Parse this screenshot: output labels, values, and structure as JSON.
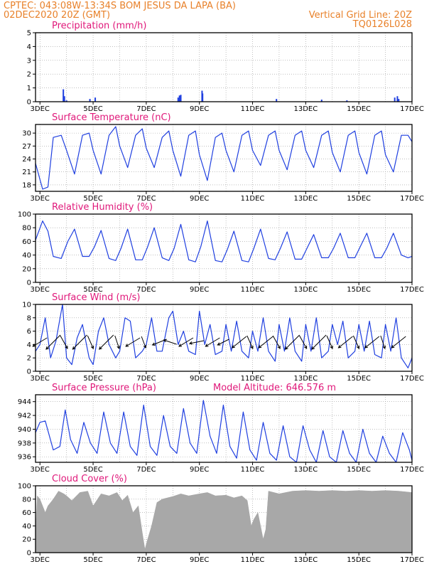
{
  "header": {
    "line1_left": "CPTEC:   043:08W-13:34S   BOM JESUS DA LAPA (BA)",
    "line2_left": "02DEC2020 20Z (GMT)",
    "line2_right": "Vertical Grid Line: 20Z",
    "line3_right": "TQ0126L028"
  },
  "colors": {
    "header_text": "#e8812a",
    "panel_title": "#e0187a",
    "series_line": "#1f3fe0",
    "cloud_fill": "#a8a8a8",
    "wind_arrow": "#000000",
    "grid": "#999999"
  },
  "x_axis": {
    "start_day": 2.833,
    "end_day": 17,
    "tick_days": [
      3,
      5,
      7,
      9,
      11,
      13,
      15,
      17
    ],
    "tick_labels": [
      "3DEC",
      "5DEC",
      "7DEC",
      "9DEC",
      "11DEC",
      "13DEC",
      "15DEC",
      "17DEC"
    ],
    "grid_days": [
      3,
      4,
      5,
      6,
      7,
      8,
      9,
      10,
      11,
      12,
      13,
      14,
      15,
      16,
      17
    ]
  },
  "chart_data": [
    {
      "type": "bar",
      "title": "Precipitation (mm/h)",
      "ylim": [
        0,
        5
      ],
      "yticks": [
        0,
        1,
        2,
        3,
        4,
        5
      ],
      "x": [
        3.88,
        3.92,
        4.0,
        4.88,
        5.08,
        8.2,
        8.25,
        8.3,
        9.1,
        9.12,
        11.9,
        13.6,
        14.55,
        16.35,
        16.45,
        16.5
      ],
      "values": [
        0.9,
        0.4,
        0.1,
        0.2,
        0.3,
        0.3,
        0.45,
        0.5,
        0.8,
        0.6,
        0.2,
        0.15,
        0.1,
        0.3,
        0.4,
        0.2
      ]
    },
    {
      "type": "line",
      "title": "Surface Temperature (nC)",
      "ylim": [
        16.5,
        32
      ],
      "yticks": [
        18,
        21,
        24,
        27,
        30
      ],
      "x": [
        2.833,
        3.1,
        3.3,
        3.5,
        3.8,
        4.0,
        4.3,
        4.6,
        4.85,
        5.0,
        5.3,
        5.6,
        5.85,
        6.0,
        6.3,
        6.6,
        6.85,
        7.0,
        7.3,
        7.6,
        7.85,
        8.0,
        8.3,
        8.6,
        8.85,
        9.0,
        9.3,
        9.6,
        9.85,
        10.0,
        10.3,
        10.6,
        10.85,
        11.0,
        11.3,
        11.6,
        11.85,
        12.0,
        12.3,
        12.6,
        12.85,
        13.0,
        13.3,
        13.6,
        13.85,
        14.0,
        14.3,
        14.6,
        14.85,
        15.0,
        15.3,
        15.6,
        15.85,
        16.0,
        16.3,
        16.6,
        16.85,
        17.0
      ],
      "y": [
        23,
        17,
        17.5,
        29,
        29.5,
        26,
        20.5,
        29.5,
        30,
        26,
        20.5,
        29.5,
        31.5,
        27,
        22,
        29.5,
        31,
        26.5,
        22,
        29,
        30.5,
        26,
        20,
        29.5,
        30.5,
        25,
        19,
        29,
        30,
        26,
        21,
        29.5,
        30.5,
        26,
        22.5,
        29.5,
        30.5,
        26,
        21.5,
        29.5,
        30.5,
        26,
        22,
        29.5,
        30.5,
        25.5,
        21,
        29.5,
        30.5,
        25.5,
        20.5,
        29.5,
        30.5,
        25,
        21,
        29.5,
        29.5,
        28
      ]
    },
    {
      "type": "line",
      "title": "Relative Humidity (%)",
      "ylim": [
        0,
        100
      ],
      "yticks": [
        0,
        20,
        40,
        60,
        80,
        100
      ],
      "x": [
        2.833,
        3.1,
        3.3,
        3.5,
        3.8,
        4.05,
        4.3,
        4.6,
        4.85,
        5.05,
        5.3,
        5.6,
        5.85,
        6.05,
        6.3,
        6.6,
        6.85,
        7.05,
        7.3,
        7.6,
        7.85,
        8.05,
        8.3,
        8.6,
        8.85,
        9.05,
        9.3,
        9.6,
        9.85,
        10.05,
        10.3,
        10.6,
        10.85,
        11.05,
        11.3,
        11.6,
        11.85,
        12.05,
        12.3,
        12.6,
        12.85,
        13.05,
        13.3,
        13.6,
        13.85,
        14.05,
        14.3,
        14.6,
        14.85,
        15.05,
        15.3,
        15.6,
        15.85,
        16.05,
        16.3,
        16.6,
        16.85,
        17.0
      ],
      "y": [
        62,
        90,
        75,
        38,
        35,
        60,
        78,
        38,
        38,
        52,
        76,
        35,
        32,
        50,
        78,
        33,
        33,
        52,
        80,
        36,
        32,
        50,
        85,
        33,
        30,
        52,
        90,
        32,
        30,
        48,
        75,
        32,
        30,
        50,
        78,
        35,
        33,
        50,
        74,
        34,
        34,
        50,
        70,
        36,
        36,
        50,
        72,
        36,
        36,
        52,
        72,
        36,
        36,
        50,
        72,
        40,
        36,
        38
      ]
    },
    {
      "type": "line",
      "title": "Surface Wind (m/s)",
      "ylim": [
        0,
        10
      ],
      "yticks": [
        0,
        2,
        4,
        6,
        8,
        10
      ],
      "x": [
        2.833,
        3.0,
        3.2,
        3.4,
        3.6,
        3.85,
        4.0,
        4.2,
        4.4,
        4.6,
        4.85,
        5.0,
        5.2,
        5.4,
        5.6,
        5.85,
        6.0,
        6.2,
        6.4,
        6.6,
        6.85,
        7.0,
        7.2,
        7.4,
        7.6,
        7.85,
        8.0,
        8.2,
        8.4,
        8.6,
        8.85,
        9.0,
        9.2,
        9.4,
        9.6,
        9.85,
        10.0,
        10.2,
        10.4,
        10.6,
        10.85,
        11.0,
        11.2,
        11.4,
        11.6,
        11.85,
        12.0,
        12.2,
        12.4,
        12.6,
        12.85,
        13.0,
        13.2,
        13.4,
        13.6,
        13.85,
        14.0,
        14.2,
        14.4,
        14.6,
        14.85,
        15.0,
        15.2,
        15.4,
        15.6,
        15.85,
        16.0,
        16.2,
        16.4,
        16.6,
        16.85,
        17.0
      ],
      "y": [
        3,
        4,
        8,
        2,
        4.5,
        10,
        2,
        1,
        5,
        7,
        2,
        1,
        6,
        8,
        4,
        2,
        3,
        8,
        7.5,
        2,
        3,
        4,
        8,
        3,
        3,
        8,
        9,
        4,
        6,
        3,
        2.5,
        9,
        4,
        7,
        2.5,
        3,
        7,
        3,
        7.5,
        3,
        2,
        6,
        3,
        8,
        3,
        1.5,
        7,
        3,
        8,
        3,
        1.5,
        7,
        3,
        8,
        2,
        3,
        7,
        4,
        7.5,
        2,
        3,
        7,
        3,
        7.5,
        2.5,
        2,
        7,
        3,
        8,
        2,
        0.5,
        2
      ]
    },
    {
      "type": "line",
      "title": "Surface Pressure (hPa)",
      "ylim": [
        935.2,
        945
      ],
      "yticks": [
        936,
        938,
        940,
        942,
        944
      ],
      "x": [
        2.833,
        3.0,
        3.2,
        3.5,
        3.75,
        3.95,
        4.15,
        4.4,
        4.65,
        4.9,
        5.15,
        5.4,
        5.65,
        5.9,
        6.15,
        6.4,
        6.65,
        6.9,
        7.15,
        7.4,
        7.65,
        7.9,
        8.15,
        8.4,
        8.65,
        8.9,
        9.15,
        9.4,
        9.65,
        9.9,
        10.15,
        10.4,
        10.65,
        10.9,
        11.15,
        11.4,
        11.65,
        11.9,
        12.15,
        12.4,
        12.65,
        12.9,
        13.15,
        13.4,
        13.65,
        13.9,
        14.15,
        14.4,
        14.65,
        14.9,
        15.15,
        15.4,
        15.65,
        15.9,
        16.15,
        16.4,
        16.65,
        16.9,
        17.0
      ],
      "y": [
        939.5,
        941,
        941.2,
        937,
        937.5,
        942.8,
        938.5,
        936.5,
        941,
        938,
        936.5,
        942.5,
        938,
        936.5,
        942.5,
        937.5,
        936.2,
        943.5,
        937.5,
        936.2,
        942,
        937.5,
        936.5,
        943,
        938,
        936.5,
        944.2,
        939,
        936.5,
        943.5,
        937.5,
        935.8,
        942.5,
        937,
        935.5,
        941,
        936.5,
        935.5,
        940.5,
        936,
        935.2,
        940.5,
        937,
        935.2,
        939.8,
        936,
        935.2,
        939.8,
        936.5,
        935.2,
        940,
        936.5,
        935.2,
        939,
        936.5,
        935.2,
        939.5,
        937,
        935.5
      ]
    },
    {
      "type": "area",
      "title": "Cloud Cover (%)",
      "ylim": [
        0,
        100
      ],
      "yticks": [
        0,
        20,
        40,
        60,
        80,
        100
      ],
      "x": [
        2.833,
        2.9,
        3.0,
        3.2,
        3.3,
        3.5,
        3.7,
        3.9,
        4.0,
        4.2,
        4.5,
        4.8,
        5.0,
        5.3,
        5.6,
        5.9,
        6.1,
        6.3,
        6.5,
        6.7,
        6.85,
        6.95,
        7.05,
        7.2,
        7.4,
        7.6,
        7.8,
        8.0,
        8.3,
        8.6,
        9.0,
        9.3,
        9.6,
        10.0,
        10.3,
        10.6,
        10.8,
        10.95,
        11.05,
        11.2,
        11.3,
        11.4,
        11.5,
        11.6,
        11.8,
        12.0,
        12.5,
        13.0,
        13.5,
        14.0,
        14.5,
        15.0,
        15.5,
        16.0,
        16.5,
        17.0
      ],
      "y": [
        30,
        85,
        80,
        60,
        70,
        80,
        92,
        88,
        85,
        78,
        90,
        92,
        70,
        88,
        85,
        90,
        78,
        86,
        60,
        70,
        30,
        5,
        20,
        40,
        75,
        80,
        82,
        84,
        88,
        85,
        88,
        90,
        85,
        86,
        82,
        85,
        78,
        40,
        50,
        60,
        40,
        20,
        35,
        92,
        90,
        88,
        92,
        93,
        92,
        93,
        92,
        93,
        92,
        93,
        92,
        90
      ]
    }
  ],
  "panel_extra": {
    "model_altitude_label": "Model Altitude:  646.576  m"
  },
  "wind_vectors": [
    {
      "day": 3.0,
      "u": 1.0,
      "v": 0.6
    },
    {
      "day": 3.5,
      "u": 1.0,
      "v": 1.0
    },
    {
      "day": 3.9,
      "u": -0.5,
      "v": 0.9
    },
    {
      "day": 4.5,
      "u": 1.0,
      "v": 1.0
    },
    {
      "day": 4.9,
      "u": -0.4,
      "v": 0.9
    },
    {
      "day": 5.5,
      "u": 1.0,
      "v": 1.0
    },
    {
      "day": 5.9,
      "u": -0.3,
      "v": 0.9
    },
    {
      "day": 6.5,
      "u": 1.0,
      "v": 0.6
    },
    {
      "day": 6.9,
      "u": -0.3,
      "v": 0.8
    },
    {
      "day": 7.5,
      "u": 1.0,
      "v": 0.4
    },
    {
      "day": 7.9,
      "u": 0.9,
      "v": -0.3
    },
    {
      "day": 8.5,
      "u": 1.0,
      "v": 0.6
    },
    {
      "day": 8.9,
      "u": 1.0,
      "v": 0.2
    },
    {
      "day": 9.5,
      "u": 1.0,
      "v": 0.6
    },
    {
      "day": 9.9,
      "u": 0.8,
      "v": 0.4
    },
    {
      "day": 10.5,
      "u": 1.0,
      "v": 0.8
    },
    {
      "day": 10.9,
      "u": -0.4,
      "v": 0.9
    },
    {
      "day": 11.5,
      "u": 1.0,
      "v": 0.8
    },
    {
      "day": 11.9,
      "u": -0.5,
      "v": 0.9
    },
    {
      "day": 12.5,
      "u": 1.0,
      "v": 1.0
    },
    {
      "day": 12.9,
      "u": -0.5,
      "v": 0.9
    },
    {
      "day": 13.5,
      "u": 1.0,
      "v": 1.0
    },
    {
      "day": 13.9,
      "u": -0.4,
      "v": 0.9
    },
    {
      "day": 14.5,
      "u": 1.0,
      "v": 0.8
    },
    {
      "day": 14.9,
      "u": -0.4,
      "v": 0.9
    },
    {
      "day": 15.5,
      "u": 1.0,
      "v": 0.8
    },
    {
      "day": 15.9,
      "u": -0.3,
      "v": 0.9
    },
    {
      "day": 16.5,
      "u": 1.0,
      "v": 0.8
    }
  ]
}
